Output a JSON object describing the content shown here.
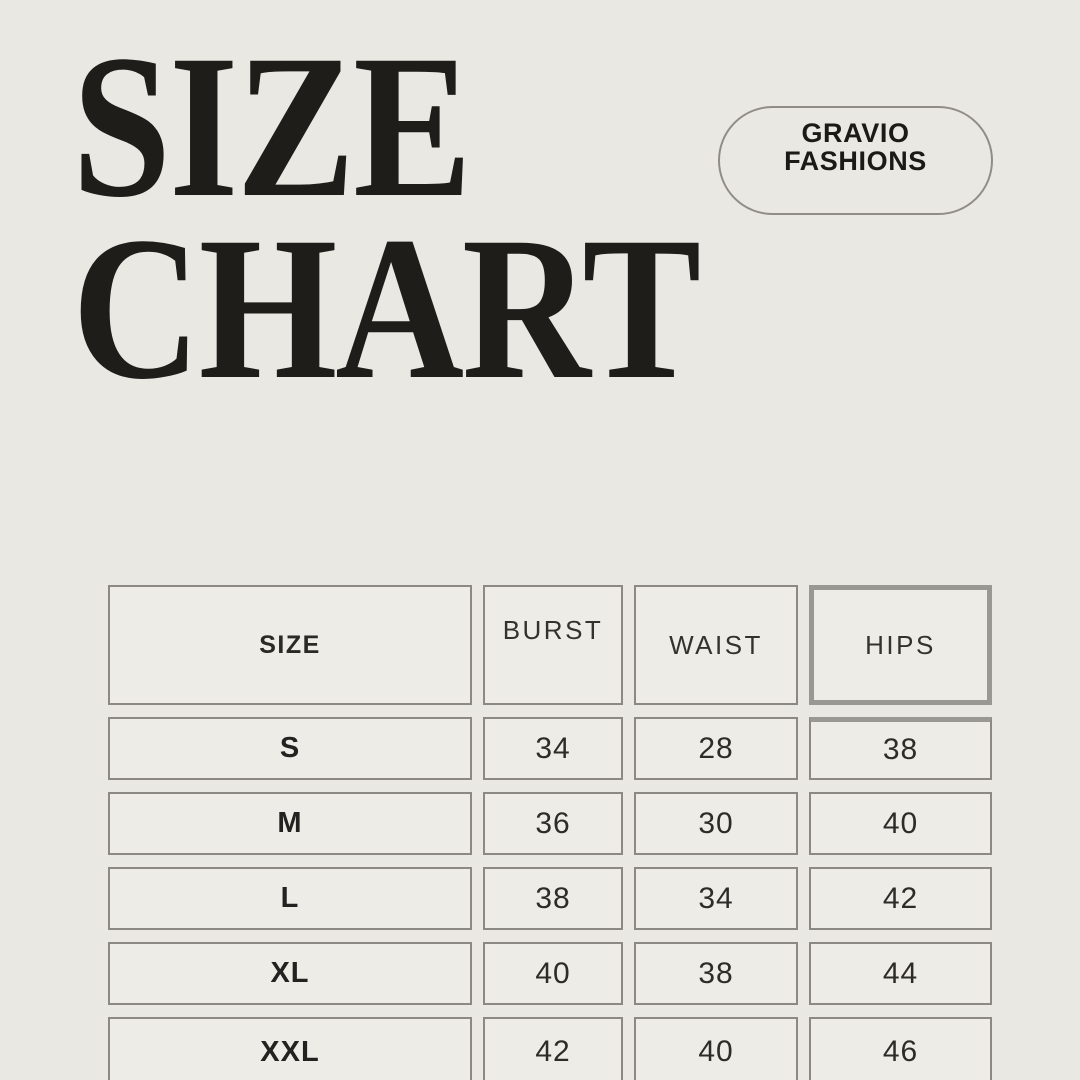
{
  "page": {
    "background_color": "#e9e8e2",
    "title_color": "#1e1d1a"
  },
  "header": {
    "title_line1": "SIZE",
    "title_line2": "CHART",
    "brand_badge": {
      "line1": "GRAVIO",
      "line2": "FASHIONS"
    }
  },
  "size_table": {
    "columns": [
      "SIZE",
      "BURST",
      "WAIST",
      "HIPS"
    ],
    "highlighted_column": "HIPS",
    "border_color": "#8b8982",
    "highlight_border_color": "#9a9892",
    "cell_background": "#eeece6",
    "rows": [
      {
        "size": "S",
        "burst": "34",
        "waist": "28",
        "hips": "38"
      },
      {
        "size": "M",
        "burst": "36",
        "waist": "30",
        "hips": "40"
      },
      {
        "size": "L",
        "burst": "38",
        "waist": "34",
        "hips": "42"
      },
      {
        "size": "XL",
        "burst": "40",
        "waist": "38",
        "hips": "44"
      },
      {
        "size": "XXL",
        "burst": "42",
        "waist": "40",
        "hips": "46"
      }
    ]
  },
  "chart_data": {
    "type": "table",
    "title": "SIZE CHART",
    "columns": [
      "SIZE",
      "BURST",
      "WAIST",
      "HIPS"
    ],
    "rows": [
      [
        "S",
        34,
        28,
        38
      ],
      [
        "M",
        36,
        30,
        40
      ],
      [
        "L",
        38,
        34,
        42
      ],
      [
        "XL",
        40,
        38,
        44
      ],
      [
        "XXL",
        42,
        40,
        46
      ]
    ],
    "highlighted_column": "HIPS"
  }
}
